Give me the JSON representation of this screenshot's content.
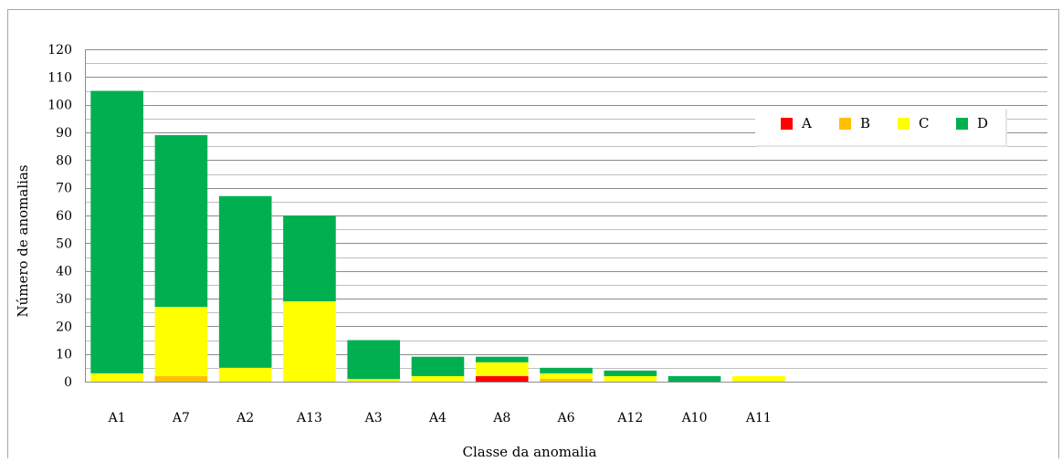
{
  "chart_data": {
    "type": "bar",
    "stacked": true,
    "title": "",
    "xlabel": "Classe da anomalia",
    "ylabel": "Número de anomalias",
    "ylim": [
      0,
      120
    ],
    "ytick_step": 10,
    "minor_step": 5,
    "grid": true,
    "legend_position": "top-right",
    "categories": [
      "A1",
      "A7",
      "A2",
      "A13",
      "A3",
      "A4",
      "A8",
      "A6",
      "A12",
      "A10",
      "A11"
    ],
    "extra_empty_slots": 4,
    "series": [
      {
        "name": "A",
        "color": "#ff0000",
        "values": [
          0,
          0,
          0,
          0,
          0,
          0,
          2,
          0,
          0,
          0,
          0
        ]
      },
      {
        "name": "B",
        "color": "#ffc000",
        "values": [
          0,
          2,
          0,
          0,
          0,
          0,
          0,
          1,
          0,
          0,
          0
        ]
      },
      {
        "name": "C",
        "color": "#ffff00",
        "values": [
          3,
          25,
          5,
          29,
          1,
          2,
          5,
          2,
          2,
          0,
          2
        ]
      },
      {
        "name": "D",
        "color": "#00b050",
        "values": [
          102,
          62,
          62,
          31,
          14,
          7,
          2,
          2,
          2,
          2,
          0
        ]
      }
    ]
  }
}
